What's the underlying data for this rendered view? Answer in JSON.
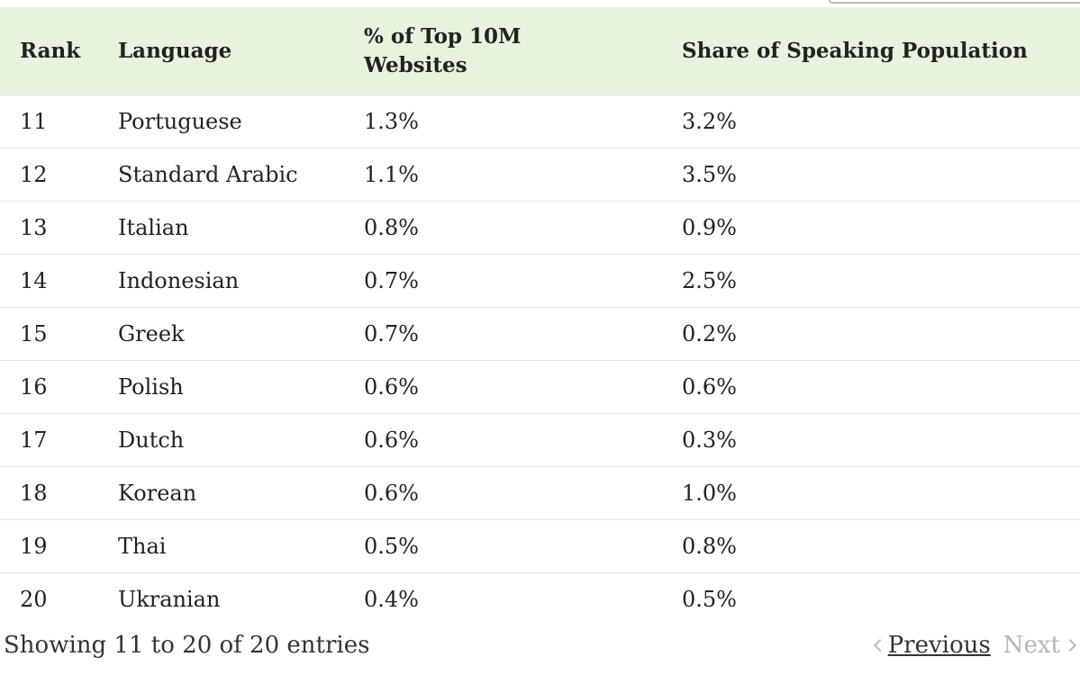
{
  "table": {
    "headers": [
      "Rank",
      "Language",
      "% of Top 10M Websites",
      "Share of Speaking Population"
    ],
    "rows": [
      [
        "11",
        "Portuguese",
        "1.3%",
        "3.2%"
      ],
      [
        "12",
        "Standard Arabic",
        "1.1%",
        "3.5%"
      ],
      [
        "13",
        "Italian",
        "0.8%",
        "0.9%"
      ],
      [
        "14",
        "Indonesian",
        "0.7%",
        "2.5%"
      ],
      [
        "15",
        "Greek",
        "0.7%",
        "0.2%"
      ],
      [
        "16",
        "Polish",
        "0.6%",
        "0.6%"
      ],
      [
        "17",
        "Dutch",
        "0.6%",
        "0.3%"
      ],
      [
        "18",
        "Korean",
        "0.6%",
        "1.0%"
      ],
      [
        "19",
        "Thai",
        "0.5%",
        "0.8%"
      ],
      [
        "20",
        "Ukranian",
        "0.4%",
        "0.5%"
      ]
    ]
  },
  "footer": {
    "info": "Showing 11 to 20 of 20 entries"
  },
  "pagination": {
    "previous": "Previous",
    "next": "Next"
  }
}
